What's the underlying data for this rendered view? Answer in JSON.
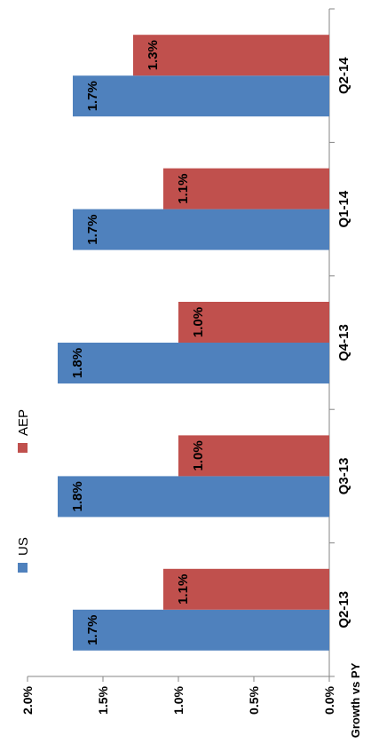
{
  "chart_data": {
    "type": "bar",
    "orientation": "rotated-90-clockwise",
    "categories": [
      "Q2-13",
      "Q3-13",
      "Q4-13",
      "Q1-14",
      "Q2-14"
    ],
    "series": [
      {
        "name": "US",
        "color": "#4F81BD",
        "values": [
          1.7,
          1.8,
          1.8,
          1.7,
          1.7
        ],
        "labels": [
          "1.7%",
          "1.8%",
          "1.8%",
          "1.7%",
          "1.7%"
        ]
      },
      {
        "name": "AEP",
        "color": "#C0504D",
        "values": [
          1.1,
          1.0,
          1.0,
          1.1,
          1.3
        ],
        "labels": [
          "1.1%",
          "1.0%",
          "1.0%",
          "1.1%",
          "1.3%"
        ]
      }
    ],
    "ylabel": "Growth vs PY",
    "ylim": [
      0,
      2.0
    ],
    "yticks": [
      "0.0%",
      "0.5%",
      "1.0%",
      "1.5%",
      "2.0%"
    ],
    "legend_position": "top",
    "grid": false
  }
}
